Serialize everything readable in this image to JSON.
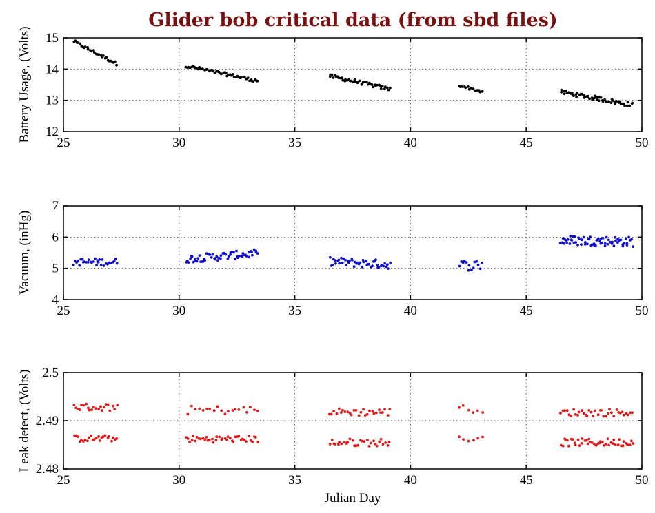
{
  "title": "Glider bob critical data (from sbd files)",
  "chart_data": [
    {
      "type": "scatter",
      "ylabel": "Battery Usage, (Volts)",
      "xlabel": "",
      "xlim": [
        25,
        50
      ],
      "ylim": [
        12,
        15
      ],
      "xticks": [
        "25",
        "30",
        "35",
        "40",
        "45",
        "50"
      ],
      "yticks": [
        "12",
        "13",
        "14",
        "15"
      ],
      "grid": true,
      "color": "#000000",
      "segments": [
        {
          "x_start": 25.45,
          "x_end": 27.3,
          "y_start": 14.88,
          "y_end": 14.17,
          "spread": 0.05,
          "points": 30
        },
        {
          "x_start": 30.3,
          "x_end": 33.4,
          "y_start": 14.1,
          "y_end": 13.62,
          "spread": 0.05,
          "points": 55
        },
        {
          "x_start": 36.5,
          "x_end": 39.1,
          "y_start": 13.78,
          "y_end": 13.36,
          "spread": 0.06,
          "points": 45
        },
        {
          "x_start": 42.1,
          "x_end": 43.1,
          "y_start": 13.48,
          "y_end": 13.28,
          "spread": 0.04,
          "points": 14
        },
        {
          "x_start": 46.5,
          "x_end": 49.6,
          "y_start": 13.27,
          "y_end": 12.85,
          "spread": 0.07,
          "points": 60
        }
      ]
    },
    {
      "type": "scatter",
      "ylabel": "Vacuum, (inHg)",
      "xlabel": "",
      "xlim": [
        25,
        50
      ],
      "ylim": [
        4,
        7
      ],
      "xticks": [
        "25",
        "30",
        "35",
        "40",
        "45",
        "50"
      ],
      "yticks": [
        "4",
        "5",
        "6",
        "7"
      ],
      "grid": true,
      "color": "#1010cc",
      "segments": [
        {
          "x_start": 25.45,
          "x_end": 27.3,
          "y_start": 5.2,
          "y_end": 5.2,
          "spread": 0.12,
          "points": 32
        },
        {
          "x_start": 30.3,
          "x_end": 33.4,
          "y_start": 5.3,
          "y_end": 5.48,
          "spread": 0.13,
          "points": 60
        },
        {
          "x_start": 36.5,
          "x_end": 39.1,
          "y_start": 5.22,
          "y_end": 5.12,
          "spread": 0.14,
          "points": 48
        },
        {
          "x_start": 42.1,
          "x_end": 43.1,
          "y_start": 5.1,
          "y_end": 5.1,
          "spread": 0.17,
          "points": 14
        },
        {
          "x_start": 46.5,
          "x_end": 49.6,
          "y_start": 5.9,
          "y_end": 5.85,
          "spread": 0.16,
          "points": 70
        }
      ]
    },
    {
      "type": "scatter",
      "ylabel": "Leak detect, (Volts)",
      "xlabel": "Julian Day",
      "xlim": [
        25,
        50
      ],
      "ylim": [
        2.48,
        2.5
      ],
      "xticks": [
        "25",
        "30",
        "35",
        "40",
        "45",
        "50"
      ],
      "yticks": [
        "2.48",
        "2.49",
        "2.5"
      ],
      "grid": true,
      "color": "#e01818",
      "segments": [
        {
          "x_start": 25.45,
          "x_end": 27.3,
          "y_start": 2.4928,
          "y_end": 2.4928,
          "spread": 0.0008,
          "points": 22
        },
        {
          "x_start": 25.45,
          "x_end": 27.3,
          "y_start": 2.4863,
          "y_end": 2.4863,
          "spread": 0.0007,
          "points": 24
        },
        {
          "x_start": 30.4,
          "x_end": 33.4,
          "y_start": 2.4922,
          "y_end": 2.4922,
          "spread": 0.0009,
          "points": 20
        },
        {
          "x_start": 30.3,
          "x_end": 33.4,
          "y_start": 2.4862,
          "y_end": 2.4862,
          "spread": 0.0007,
          "points": 40
        },
        {
          "x_start": 36.5,
          "x_end": 39.1,
          "y_start": 2.4918,
          "y_end": 2.4918,
          "spread": 0.0008,
          "points": 28
        },
        {
          "x_start": 36.5,
          "x_end": 39.1,
          "y_start": 2.4855,
          "y_end": 2.4855,
          "spread": 0.0008,
          "points": 30
        },
        {
          "x_start": 42.1,
          "x_end": 43.1,
          "y_start": 2.4925,
          "y_end": 2.4925,
          "spread": 0.0008,
          "points": 6
        },
        {
          "x_start": 42.1,
          "x_end": 43.1,
          "y_start": 2.4862,
          "y_end": 2.4862,
          "spread": 0.0005,
          "points": 6
        },
        {
          "x_start": 46.5,
          "x_end": 49.6,
          "y_start": 2.4917,
          "y_end": 2.4917,
          "spread": 0.0008,
          "points": 36
        },
        {
          "x_start": 46.5,
          "x_end": 49.6,
          "y_start": 2.4855,
          "y_end": 2.4855,
          "spread": 0.0008,
          "points": 44
        }
      ]
    }
  ]
}
